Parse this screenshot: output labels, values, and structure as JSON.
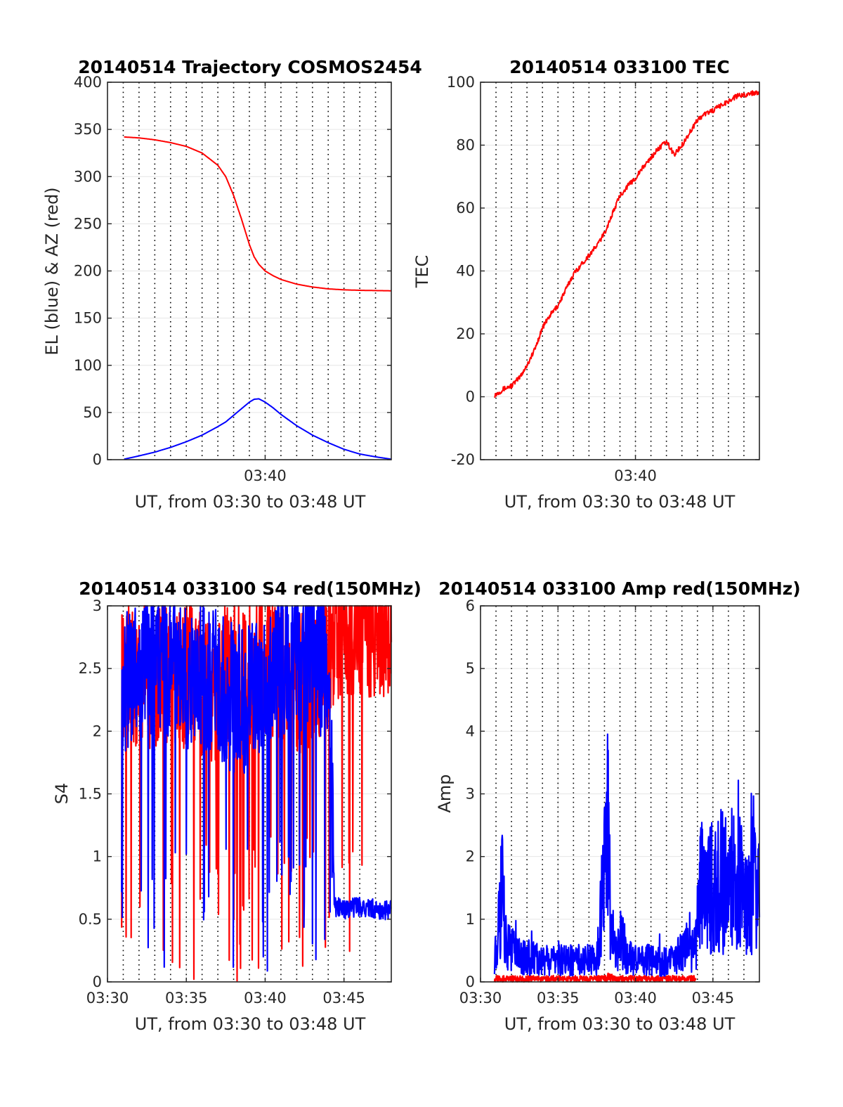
{
  "colors": {
    "azimuth": "#ff0000",
    "elevation": "#0000ff",
    "tec": "#ff0000",
    "s4_red": "#ff0000",
    "s4_blue": "#0000ff",
    "amp_red": "#ff0000",
    "amp_blue": "#0000ff",
    "axis": "#262626",
    "grid": "#e6e6e6"
  },
  "chart_data": [
    {
      "id": "trajectory",
      "type": "line",
      "title": "20140514 Trajectory COSMOS2454",
      "xlabel": "UT, from 03:30 to 03:48 UT",
      "ylabel": "EL (blue) & AZ (red)",
      "x_unit": "minutes after 03:30 UT",
      "xlim": [
        30.0,
        48.0
      ],
      "ylim": [
        0,
        400
      ],
      "yticks": [
        0,
        50,
        100,
        150,
        200,
        250,
        300,
        350,
        400
      ],
      "xtick_labels": [
        {
          "x": 40,
          "label": "03:40"
        }
      ],
      "minor_grid_minutes": true,
      "grid": true,
      "series": [
        {
          "name": "AZ (red)",
          "color": "red",
          "x": [
            31.05,
            32,
            33,
            34,
            35,
            36,
            37,
            37.5,
            38,
            38.5,
            39,
            39.3,
            39.6,
            40,
            40.5,
            41,
            42,
            43,
            44,
            45,
            46,
            47,
            48
          ],
          "y": [
            342,
            341,
            339,
            336,
            332,
            325,
            312,
            300,
            280,
            255,
            228,
            215,
            207,
            200,
            195,
            191,
            186,
            183,
            181,
            180,
            179.5,
            179.2,
            179
          ]
        },
        {
          "name": "EL (blue)",
          "color": "blue",
          "x": [
            31.05,
            32,
            33,
            34,
            35,
            36,
            37,
            37.5,
            38,
            38.5,
            39,
            39.3,
            39.6,
            40,
            40.5,
            41,
            42,
            43,
            44,
            45,
            46,
            47,
            48
          ],
          "y": [
            0.5,
            4,
            8,
            13,
            19,
            26,
            35,
            40,
            47,
            54,
            61,
            64,
            64.5,
            61,
            55,
            48,
            36,
            26,
            18,
            11,
            6,
            3,
            0.5
          ]
        }
      ]
    },
    {
      "id": "tec",
      "type": "line",
      "title": "20140514 033100 TEC",
      "xlabel": "UT, from 03:30 to 03:48 UT",
      "ylabel": "TEC",
      "x_unit": "minutes after 03:30 UT",
      "xlim": [
        30.0,
        48.0
      ],
      "ylim": [
        -20,
        100
      ],
      "yticks": [
        -20,
        0,
        20,
        40,
        60,
        80,
        100
      ],
      "xtick_labels": [
        {
          "x": 40,
          "label": "03:40"
        }
      ],
      "minor_grid_minutes": true,
      "grid": true,
      "series": [
        {
          "name": "TEC",
          "color": "red",
          "x": [
            30.9,
            31.5,
            32,
            32.5,
            33,
            33.5,
            34,
            34.5,
            35,
            35.5,
            36,
            36.5,
            37,
            37.5,
            38,
            38.5,
            39,
            39.5,
            40,
            40.5,
            41,
            41.5,
            42,
            42.5,
            43,
            43.5,
            44,
            44.5,
            45,
            45.5,
            46,
            46.5,
            47,
            47.5,
            48
          ],
          "y": [
            0.5,
            2.5,
            3.5,
            6,
            10,
            15,
            22,
            26,
            29,
            34,
            39,
            42,
            45,
            48,
            52,
            58,
            64,
            67,
            69.5,
            73,
            76,
            79,
            81,
            77,
            80,
            84,
            88,
            90,
            91,
            92.5,
            94,
            95.5,
            96,
            96.5,
            97
          ]
        }
      ]
    },
    {
      "id": "s4",
      "type": "line",
      "title": "20140514 033100 S4 red(150MHz)",
      "xlabel": "UT, from 03:30 to 03:48 UT",
      "ylabel": "S4",
      "x_unit": "minutes after 03:30 UT",
      "xlim": [
        30.0,
        48.0
      ],
      "ylim": [
        0,
        3
      ],
      "yticks": [
        0,
        0.5,
        1,
        1.5,
        2,
        2.5,
        3
      ],
      "xtick_labels": [
        {
          "x": 30,
          "label": "03:30"
        },
        {
          "x": 35,
          "label": "03:35"
        },
        {
          "x": 40,
          "label": "03:40"
        },
        {
          "x": 45,
          "label": "03:45"
        }
      ],
      "minor_grid_minutes": true,
      "grid": true,
      "series": [
        {
          "name": "S4 red",
          "color": "red",
          "noisy": true,
          "x": [
            30.9,
            32,
            33,
            34,
            35,
            36,
            37,
            38,
            39,
            40,
            41,
            42,
            43,
            44,
            44.4,
            45,
            46,
            47,
            48
          ],
          "y": [
            2.5,
            2.4,
            2.4,
            2.4,
            2.4,
            2.3,
            2.3,
            2.4,
            2.4,
            2.5,
            2.4,
            2.3,
            2.4,
            2.6,
            2.75,
            2.75,
            2.8,
            2.8,
            2.8
          ]
        },
        {
          "name": "S4 blue",
          "color": "blue",
          "noisy": true,
          "x": [
            30.9,
            32,
            33,
            34,
            35,
            36,
            37,
            38,
            39,
            40,
            41,
            42,
            43,
            44,
            44.4,
            45,
            46,
            47,
            48
          ],
          "y": [
            2.3,
            2.4,
            2.5,
            2.5,
            2.4,
            2.4,
            2.3,
            2.2,
            2.2,
            2.4,
            2.5,
            2.5,
            2.5,
            2.5,
            0.6,
            0.58,
            0.6,
            0.58,
            0.57
          ]
        }
      ]
    },
    {
      "id": "amp",
      "type": "line",
      "title": "20140514 033100 Amp red(150MHz)",
      "xlabel": "UT, from 03:30 to 03:48 UT",
      "ylabel": "Amp",
      "x_unit": "minutes after 03:30 UT",
      "xlim": [
        30.0,
        48.0
      ],
      "ylim": [
        0,
        6
      ],
      "yticks": [
        0,
        1,
        2,
        3,
        4,
        5,
        6
      ],
      "xtick_labels": [
        {
          "x": 30,
          "label": "03:30"
        },
        {
          "x": 35,
          "label": "03:35"
        },
        {
          "x": 40,
          "label": "03:40"
        },
        {
          "x": 45,
          "label": "03:45"
        }
      ],
      "minor_grid_minutes": true,
      "grid": true,
      "series": [
        {
          "name": "Amp red",
          "color": "red",
          "noisy": true,
          "x": [
            30.9,
            38,
            38.3,
            38.6,
            41,
            43.9
          ],
          "y": [
            0.1,
            0.1,
            0.15,
            0.1,
            0.1,
            0.1
          ]
        },
        {
          "name": "Amp blue",
          "color": "blue",
          "noisy": true,
          "x": [
            30.9,
            31.2,
            31.4,
            31.6,
            32,
            33,
            34,
            35,
            36,
            37,
            37.5,
            38,
            38.2,
            38.4,
            38.7,
            39,
            39.5,
            40,
            41,
            42,
            43,
            43.9,
            44.2,
            45,
            46,
            47,
            48
          ],
          "y": [
            0.8,
            1.5,
            2.6,
            1.2,
            0.9,
            0.7,
            0.6,
            0.6,
            0.6,
            0.6,
            0.6,
            3.4,
            4.6,
            2.0,
            0.7,
            1.3,
            0.7,
            0.6,
            0.6,
            0.6,
            0.8,
            1.0,
            2.6,
            2.7,
            2.8,
            2.7,
            2.9
          ]
        }
      ]
    }
  ]
}
